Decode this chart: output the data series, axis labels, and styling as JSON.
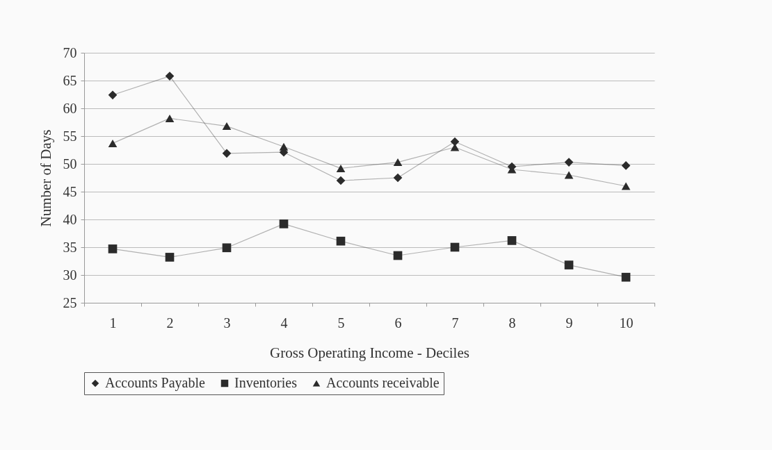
{
  "chart_data": {
    "type": "line",
    "xlabel": "Gross Operating Income - Deciles",
    "ylabel": "Number of Days",
    "categories": [
      "1",
      "2",
      "3",
      "4",
      "5",
      "6",
      "7",
      "8",
      "9",
      "10"
    ],
    "series": [
      {
        "name": "Accounts Payable",
        "color": "#2b2b2b",
        "marker": "diamond",
        "values": [
          62.4,
          65.8,
          51.9,
          52.1,
          47.0,
          47.5,
          54.0,
          49.5,
          50.3,
          49.7
        ]
      },
      {
        "name": "Inventories",
        "color": "#2b2b2b",
        "marker": "square",
        "values": [
          34.7,
          33.2,
          34.9,
          39.2,
          36.1,
          33.5,
          35.0,
          36.2,
          31.8,
          29.6
        ]
      },
      {
        "name": "Accounts receivable",
        "color": "#2b2b2b",
        "marker": "triangle",
        "values": [
          53.7,
          58.2,
          56.8,
          53.1,
          49.2,
          50.3,
          53.0,
          49.0,
          48.0,
          46.0
        ]
      }
    ],
    "ylim": [
      25,
      70
    ],
    "yticks": [
      25,
      30,
      35,
      40,
      45,
      50,
      55,
      60,
      65,
      70
    ],
    "grid": "y",
    "legend": "bottom",
    "line_style": "solid"
  }
}
